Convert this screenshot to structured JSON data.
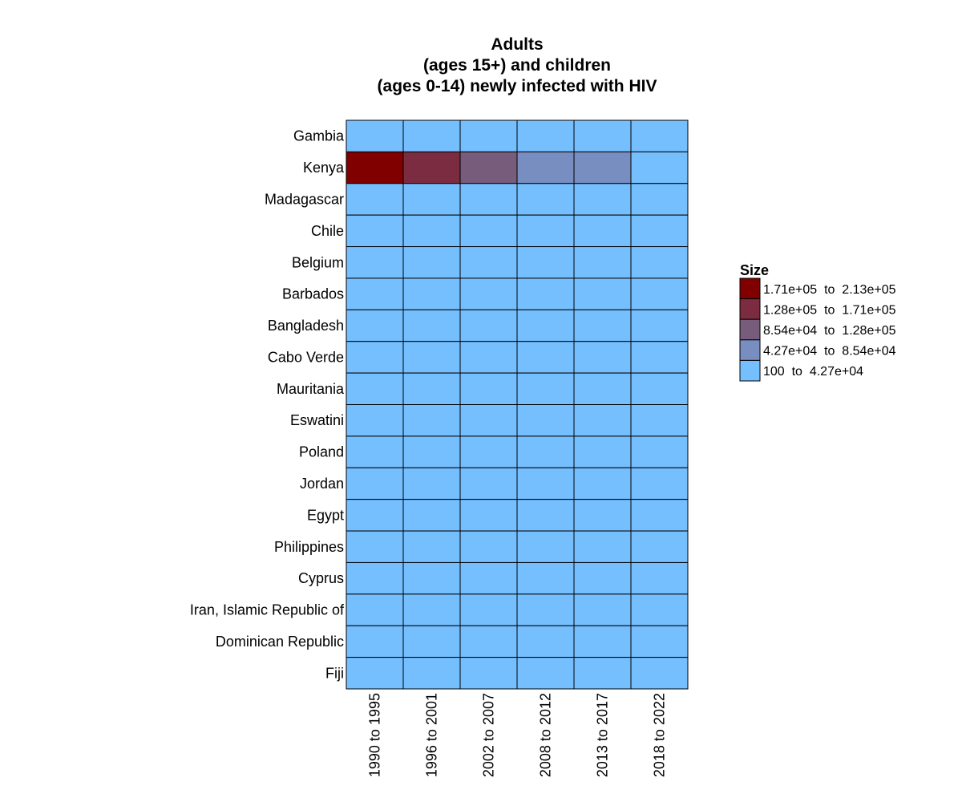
{
  "chart_data": {
    "type": "heatmap",
    "title_lines": [
      "Adults",
      "(ages 15+) and children",
      "(ages 0-14) newly infected with HIV"
    ],
    "rows": [
      "Gambia",
      "Kenya",
      "Madagascar",
      "Chile",
      "Belgium",
      "Barbados",
      "Bangladesh",
      "Cabo Verde",
      "Mauritania",
      "Eswatini",
      "Poland",
      "Jordan",
      "Egypt",
      "Philippines",
      "Cyprus",
      "Iran, Islamic Republic of",
      "Dominican Republic",
      "Fiji"
    ],
    "columns": [
      "1990 to 1995",
      "1996 to 2001",
      "2002 to 2007",
      "2008 to 2012",
      "2013 to 2017",
      "2018 to 2022"
    ],
    "cell_bins": [
      [
        4,
        4,
        4,
        4,
        4,
        4
      ],
      [
        0,
        1,
        2,
        3,
        3,
        4
      ],
      [
        4,
        4,
        4,
        4,
        4,
        4
      ],
      [
        4,
        4,
        4,
        4,
        4,
        4
      ],
      [
        4,
        4,
        4,
        4,
        4,
        4
      ],
      [
        4,
        4,
        4,
        4,
        4,
        4
      ],
      [
        4,
        4,
        4,
        4,
        4,
        4
      ],
      [
        4,
        4,
        4,
        4,
        4,
        4
      ],
      [
        4,
        4,
        4,
        4,
        4,
        4
      ],
      [
        4,
        4,
        4,
        4,
        4,
        4
      ],
      [
        4,
        4,
        4,
        4,
        4,
        4
      ],
      [
        4,
        4,
        4,
        4,
        4,
        4
      ],
      [
        4,
        4,
        4,
        4,
        4,
        4
      ],
      [
        4,
        4,
        4,
        4,
        4,
        4
      ],
      [
        4,
        4,
        4,
        4,
        4,
        4
      ],
      [
        4,
        4,
        4,
        4,
        4,
        4
      ],
      [
        4,
        4,
        4,
        4,
        4,
        4
      ],
      [
        4,
        4,
        4,
        4,
        4,
        4
      ]
    ],
    "legend": {
      "title": "Size",
      "placement": "right",
      "bins": [
        {
          "label": "1.71e+05  to  2.13e+05",
          "color": "#800000"
        },
        {
          "label": "1.28e+05  to  1.71e+05",
          "color": "#7b2c40"
        },
        {
          "label": "8.54e+04  to  1.28e+05",
          "color": "#775c7c"
        },
        {
          "label": "4.27e+04  to  8.54e+04",
          "color": "#788ec0"
        },
        {
          "label": "100  to  4.27e+04",
          "color": "#76bffe"
        }
      ]
    },
    "grid": false,
    "cell_border_color": "#000000"
  }
}
